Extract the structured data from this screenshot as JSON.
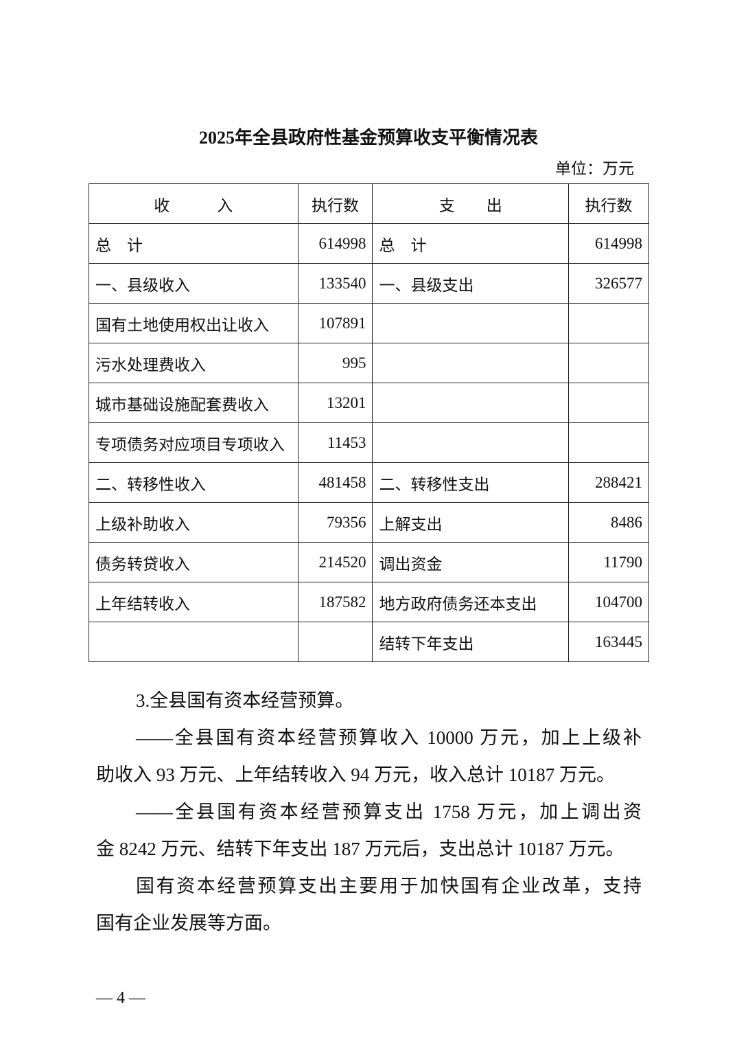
{
  "title": "2025年全县政府性基金预算收支平衡情况表",
  "unit": "单位：万元",
  "table": {
    "headers": [
      "收　　　入",
      "执行数",
      "支　　出",
      "执行数"
    ],
    "rows": [
      [
        "总　计",
        "614998",
        "总　计",
        "614998"
      ],
      [
        "一、县级收入",
        "133540",
        "一、县级支出",
        "326577"
      ],
      [
        "国有土地使用权出让收入",
        "107891",
        "",
        ""
      ],
      [
        "污水处理费收入",
        "995",
        "",
        ""
      ],
      [
        "城市基础设施配套费收入",
        "13201",
        "",
        ""
      ],
      [
        "专项债务对应项目专项收入",
        "11453",
        "",
        ""
      ],
      [
        "二、转移性收入",
        "481458",
        "二、转移性支出",
        "288421"
      ],
      [
        "上级补助收入",
        "79356",
        "上解支出",
        "8486"
      ],
      [
        "债务转贷收入",
        "214520",
        "调出资金",
        "11790"
      ],
      [
        "上年结转收入",
        "187582",
        "地方政府债务还本支出",
        "104700"
      ],
      [
        "",
        "",
        "结转下年支出",
        "163445"
      ]
    ]
  },
  "body": {
    "heading": "3.全县国有资本经营预算。",
    "para1": [
      "——全县国有资本经营预算收入 10000 万元，加上上级补",
      "助收入 93 万元、上年结转收入 94 万元，收入总计 10187 万元。"
    ],
    "para2": [
      "——全县国有资本经营预算支出 1758 万元，加上调出资",
      "金 8242 万元、结转下年支出 187 万元后，支出总计 10187 万元。"
    ],
    "para3": [
      "国有资本经营预算支出主要用于加快国有企业改革，支持",
      "国有企业发展等方面。"
    ]
  },
  "page_number": "— 4 —"
}
